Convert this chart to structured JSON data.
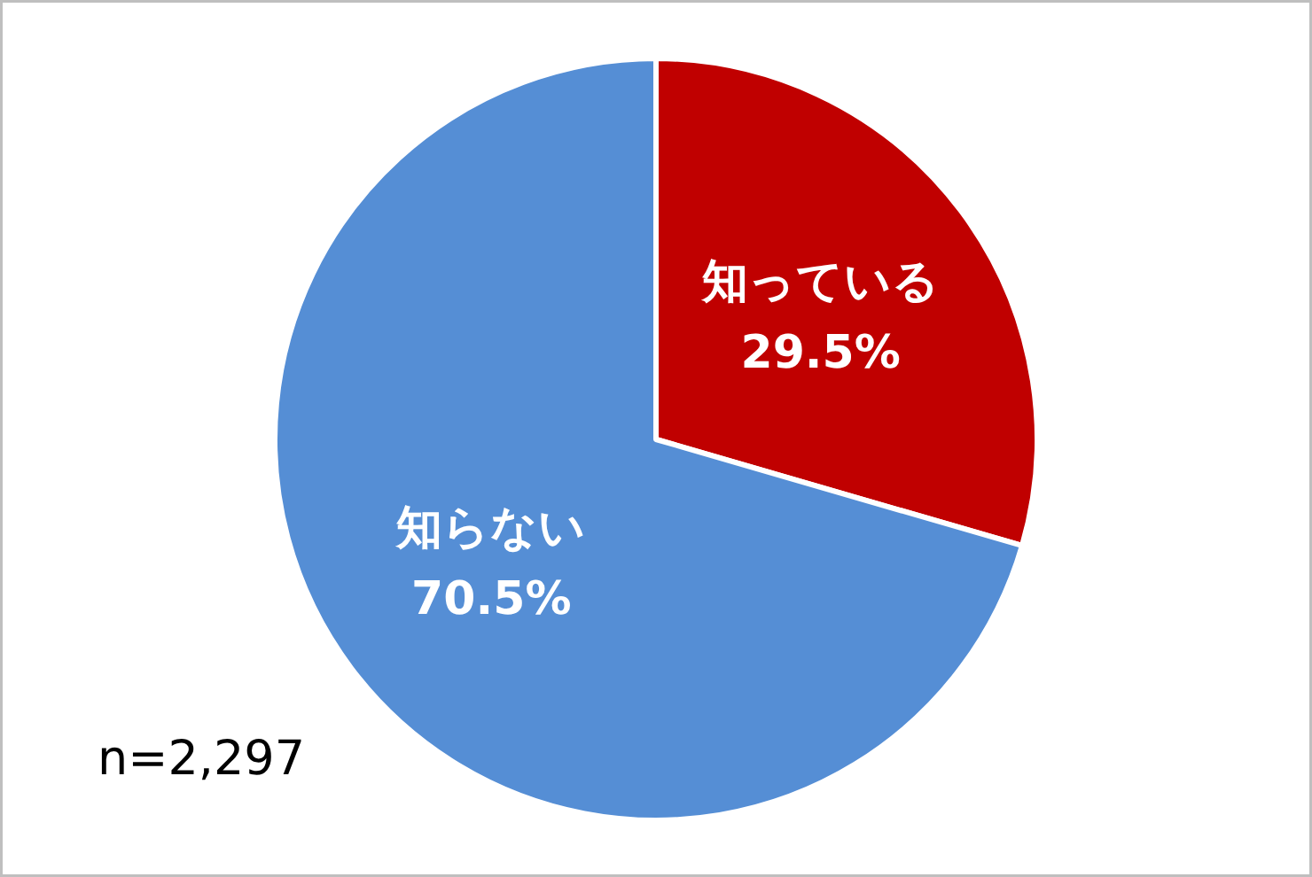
{
  "chart_data": {
    "type": "pie",
    "categories": [
      "知っている",
      "知らない"
    ],
    "values": [
      29.5,
      70.5
    ],
    "colors": [
      "#c00000",
      "#558ed5"
    ],
    "value_labels": [
      "29.5%",
      "70.5%"
    ],
    "annotations": [
      "n=2,297"
    ]
  }
}
